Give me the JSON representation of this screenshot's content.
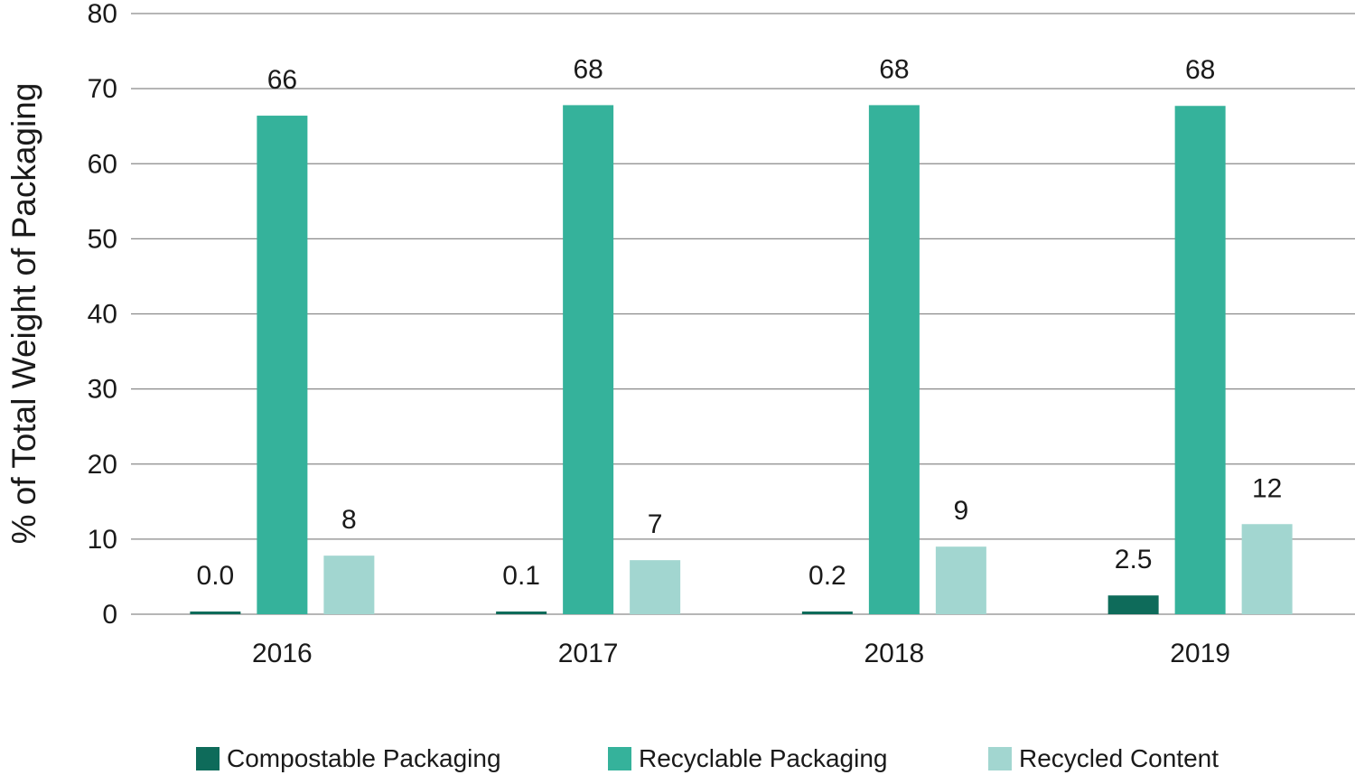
{
  "chart_data": {
    "type": "bar",
    "categories": [
      "2016",
      "2017",
      "2018",
      "2019"
    ],
    "series": [
      {
        "name": "Compostable Packaging",
        "color": "#0e6b5a",
        "values": [
          0.0,
          0.1,
          0.2,
          2.5
        ],
        "labels": [
          "0.0",
          "0.1",
          "0.2",
          "2.5"
        ]
      },
      {
        "name": "Recyclable Packaging",
        "color": "#35b29b",
        "values": [
          66.4,
          67.8,
          67.8,
          67.7
        ],
        "labels": [
          "66",
          "68",
          "68",
          "68"
        ]
      },
      {
        "name": "Recycled Content",
        "color": "#a2d6d0",
        "values": [
          7.8,
          7.2,
          9.0,
          12.0
        ],
        "labels": [
          "8",
          "7",
          "9",
          "12"
        ]
      }
    ],
    "title": "",
    "xlabel": "",
    "ylabel": "% of Total Weight of Packaging",
    "ylim": [
      0,
      80
    ],
    "yticks": [
      "0",
      "10",
      "20",
      "30",
      "40",
      "50",
      "60",
      "70",
      "80"
    ],
    "grid": true,
    "legend": "bottom"
  }
}
